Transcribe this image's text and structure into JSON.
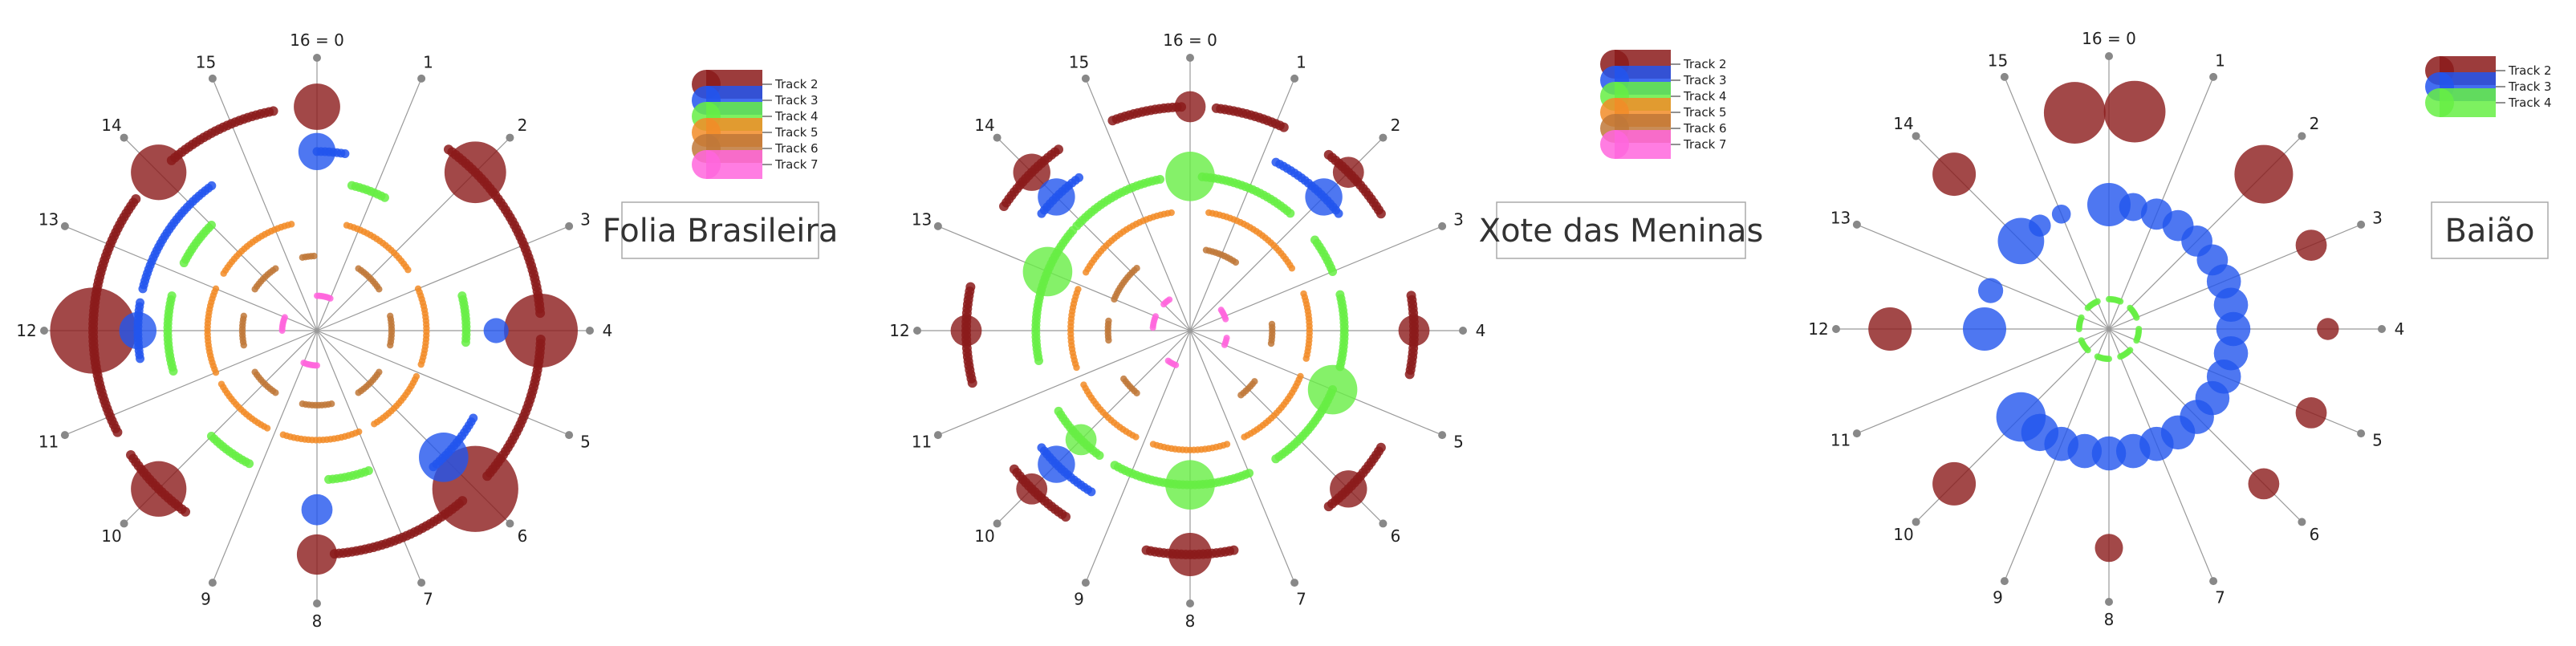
{
  "colors": {
    "Track 2": "#8B1A1A",
    "Track 3": "#2255EE",
    "Track 4": "#66EE44",
    "Track 5": "#F28C28",
    "Track 6": "#C07838",
    "Track 7": "#FF66DD",
    "spoke": "#999999",
    "spoke_dot": "#888888"
  },
  "spoke_labels": [
    "16 = 0",
    "1",
    "2",
    "3",
    "4",
    "5",
    "6",
    "7",
    "8",
    "9",
    "10",
    "11",
    "12",
    "13",
    "14",
    "15"
  ],
  "chart_data": [
    {
      "type": "radial-rhythm",
      "title": "Folia Brasileira",
      "legend": [
        "Track 2",
        "Track 3",
        "Track 4",
        "Track 5",
        "Track 6",
        "Track 7"
      ],
      "steps": 16,
      "tracks": [
        {
          "name": "Track 2",
          "ring": 0.9,
          "big_notes": [
            {
              "step": 0,
              "size": 0.55
            },
            {
              "step": 2,
              "size": 0.8
            },
            {
              "step": 4,
              "size": 1.0
            },
            {
              "step": 6,
              "size": 1.2
            },
            {
              "step": 8,
              "size": 0.45
            },
            {
              "step": 10,
              "size": 0.7
            },
            {
              "step": 12,
              "size": 1.2
            },
            {
              "step": 14,
              "size": 0.7
            }
          ],
          "arcs": [
            [
              14.2,
              15.5
            ],
            [
              1.6,
              3.8
            ],
            [
              4.1,
              5.8
            ],
            [
              6.2,
              7.8
            ],
            [
              9.6,
              10.5
            ],
            [
              10.8,
              13.6
            ]
          ]
        },
        {
          "name": "Track 3",
          "ring": 0.72,
          "big_notes": [
            {
              "step": 0,
              "size": 0.4
            },
            {
              "step": 4,
              "size": 0.2
            },
            {
              "step": 6,
              "size": 0.6
            },
            {
              "step": 8,
              "size": 0.3
            },
            {
              "step": 12,
              "size": 0.4
            }
          ],
          "arcs": [
            [
              0.0,
              0.4
            ],
            [
              5.3,
              6.2
            ],
            [
              11.6,
              12.4
            ],
            [
              12.6,
              14.4
            ]
          ]
        },
        {
          "name": "Track 4",
          "ring": 0.6,
          "big_notes": [],
          "arcs": [
            [
              0.6,
              1.2
            ],
            [
              3.4,
              4.2
            ],
            [
              7.1,
              7.8
            ],
            [
              9.2,
              10.0
            ],
            [
              11.3,
              12.6
            ],
            [
              13.2,
              14.0
            ]
          ]
        },
        {
          "name": "Track 5",
          "ring": 0.44,
          "big_notes": [],
          "arcs": [
            [
              0.7,
              2.5
            ],
            [
              3.0,
              4.8
            ],
            [
              5.1,
              6.6
            ],
            [
              7.0,
              8.8
            ],
            [
              9.2,
              10.7
            ],
            [
              11.0,
              13.0
            ],
            [
              13.4,
              15.4
            ]
          ]
        },
        {
          "name": "Track 6",
          "ring": 0.3,
          "big_notes": [],
          "arcs": [
            [
              1.5,
              2.5
            ],
            [
              3.5,
              4.5
            ],
            [
              5.5,
              6.5
            ],
            [
              7.5,
              8.5
            ],
            [
              9.5,
              10.5
            ],
            [
              11.5,
              12.5
            ],
            [
              13.5,
              14.5
            ],
            [
              15.5,
              15.9
            ]
          ]
        },
        {
          "name": "Track 7",
          "ring": 0.14,
          "big_notes": [],
          "arcs": [
            [
              0.0,
              1.0
            ],
            [
              8.0,
              9.0
            ],
            [
              12.0,
              13.0
            ]
          ]
        }
      ]
    },
    {
      "type": "radial-rhythm",
      "title": "Xote das Meninas",
      "legend": [
        "Track 2",
        "Track 3",
        "Track 4",
        "Track 5",
        "Track 6",
        "Track 7"
      ],
      "steps": 16,
      "tracks": [
        {
          "name": "Track 2",
          "ring": 0.9,
          "big_notes": [
            {
              "step": 0,
              "size": 0.3
            },
            {
              "step": 2,
              "size": 0.3
            },
            {
              "step": 4,
              "size": 0.3
            },
            {
              "step": 6,
              "size": 0.4
            },
            {
              "step": 8,
              "size": 0.5
            },
            {
              "step": 10,
              "size": 0.3
            },
            {
              "step": 12,
              "size": 0.3
            },
            {
              "step": 14,
              "size": 0.4
            }
          ],
          "arcs": [
            [
              15.1,
              15.9
            ],
            [
              0.3,
              1.1
            ],
            [
              1.7,
              2.6
            ],
            [
              3.6,
              4.5
            ],
            [
              5.4,
              6.3
            ],
            [
              7.5,
              8.5
            ],
            [
              9.5,
              10.3
            ],
            [
              11.4,
              12.5
            ],
            [
              13.5,
              14.4
            ]
          ]
        },
        {
          "name": "Track 3",
          "ring": 0.76,
          "big_notes": [
            {
              "step": 2,
              "size": 0.4
            },
            {
              "step": 10,
              "size": 0.4
            },
            {
              "step": 14,
              "size": 0.4
            }
          ],
          "arcs": [
            [
              1.2,
              2.3
            ],
            [
              9.4,
              10.3
            ],
            [
              13.7,
              14.4
            ]
          ]
        },
        {
          "name": "Track 4",
          "ring": 0.62,
          "big_notes": [
            {
              "step": 0,
              "size": 0.6
            },
            {
              "step": 5,
              "size": 0.6
            },
            {
              "step": 8,
              "size": 0.6
            },
            {
              "step": 10,
              "size": 0.3
            },
            {
              "step": 13,
              "size": 0.6
            }
          ],
          "arcs": [
            [
              0.2,
              1.8
            ],
            [
              2.4,
              3.0
            ],
            [
              3.4,
              4.6
            ],
            [
              5.0,
              6.5
            ],
            [
              7.0,
              9.3
            ],
            [
              9.6,
              10.6
            ],
            [
              11.5,
              13.8
            ],
            [
              13.9,
              15.5
            ]
          ]
        },
        {
          "name": "Track 5",
          "ring": 0.48,
          "big_notes": [],
          "arcs": [
            [
              0.4,
              2.6
            ],
            [
              3.2,
              4.6
            ],
            [
              5.0,
              6.8
            ],
            [
              7.2,
              8.8
            ],
            [
              9.2,
              10.8
            ],
            [
              11.2,
              12.9
            ],
            [
              13.3,
              15.6
            ]
          ]
        },
        {
          "name": "Track 6",
          "ring": 0.33,
          "big_notes": [],
          "arcs": [
            [
              0.5,
              1.5
            ],
            [
              3.8,
              4.4
            ],
            [
              5.7,
              6.3
            ],
            [
              9.8,
              10.4
            ],
            [
              11.7,
              12.3
            ],
            [
              13.0,
              14.2
            ]
          ]
        },
        {
          "name": "Track 7",
          "ring": 0.15,
          "big_notes": [],
          "arcs": [
            [
              2.5,
              3.2
            ],
            [
              4.5,
              5.0
            ],
            [
              9.0,
              9.6
            ],
            [
              12.2,
              13.0
            ],
            [
              14.0,
              14.5
            ]
          ]
        }
      ]
    },
    {
      "type": "radial-rhythm",
      "title": "Baião",
      "legend": [
        "Track 2",
        "Track 3",
        "Track 4"
      ],
      "steps": 16,
      "tracks": [
        {
          "name": "Track 2",
          "ring": 0.88,
          "big_notes": [
            {
              "step": 15.6,
              "size": 0.8
            },
            {
              "step": 0.3,
              "size": 0.8
            },
            {
              "step": 2,
              "size": 0.75
            },
            {
              "step": 3,
              "size": 0.3
            },
            {
              "step": 4,
              "size": 0.15
            },
            {
              "step": 5,
              "size": 0.3
            },
            {
              "step": 6,
              "size": 0.3
            },
            {
              "step": 8,
              "size": 0.25
            },
            {
              "step": 10,
              "size": 0.5
            },
            {
              "step": 12,
              "size": 0.5
            },
            {
              "step": 14,
              "size": 0.5
            }
          ],
          "arcs": []
        },
        {
          "name": "Track 3",
          "ring": 0.5,
          "big_notes": [
            {
              "step": 0,
              "size": 0.5
            },
            {
              "step": 0.5,
              "size": 0.25
            },
            {
              "step": 1,
              "size": 0.3
            },
            {
              "step": 1.5,
              "size": 0.3
            },
            {
              "step": 2,
              "size": 0.3
            },
            {
              "step": 2.5,
              "size": 0.3
            },
            {
              "step": 3,
              "size": 0.35
            },
            {
              "step": 3.5,
              "size": 0.35
            },
            {
              "step": 4,
              "size": 0.35
            },
            {
              "step": 4.5,
              "size": 0.35
            },
            {
              "step": 5,
              "size": 0.35
            },
            {
              "step": 5.5,
              "size": 0.35
            },
            {
              "step": 6,
              "size": 0.35
            },
            {
              "step": 6.5,
              "size": 0.35
            },
            {
              "step": 7,
              "size": 0.35
            },
            {
              "step": 7.5,
              "size": 0.35
            },
            {
              "step": 8,
              "size": 0.35
            },
            {
              "step": 8.5,
              "size": 0.35
            },
            {
              "step": 9,
              "size": 0.35
            },
            {
              "step": 9.5,
              "size": 0.4
            },
            {
              "step": 10,
              "size": 0.6
            },
            {
              "step": 12,
              "size": 0.5
            },
            {
              "step": 12.8,
              "size": 0.2
            },
            {
              "step": 14,
              "size": 0.55
            },
            {
              "step": 14.5,
              "size": 0.15
            },
            {
              "step": 15,
              "size": 0.1
            }
          ],
          "arcs": []
        },
        {
          "name": "Track 4",
          "ring": 0.12,
          "big_notes": [],
          "arcs": [
            [
              0.0,
              1.0
            ],
            [
              2.0,
              3.0
            ],
            [
              4.0,
              5.0
            ],
            [
              6.0,
              7.0
            ],
            [
              8.0,
              9.0
            ],
            [
              10.0,
              11.0
            ],
            [
              12.0,
              13.0
            ],
            [
              14.0,
              15.0
            ]
          ]
        }
      ]
    }
  ]
}
